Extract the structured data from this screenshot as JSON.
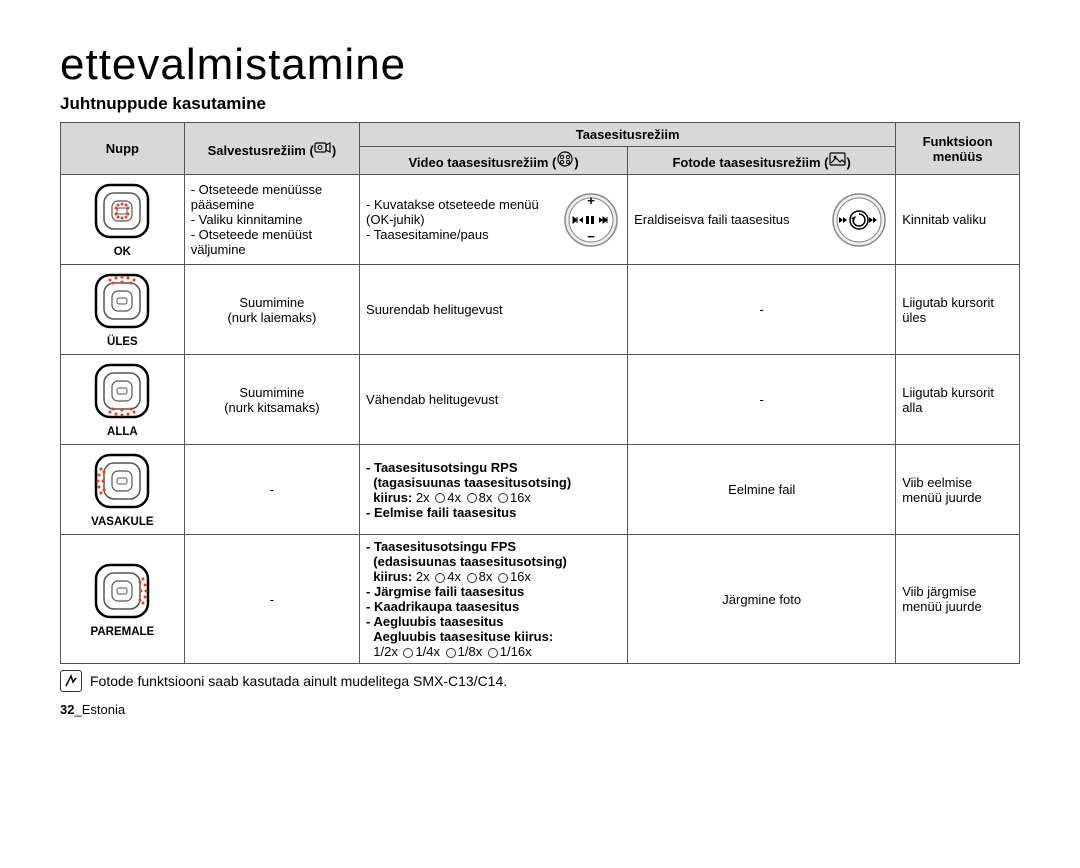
{
  "title": "ettevalmistamine",
  "subtitle": "Juhtnuppude kasutamine",
  "headers": {
    "nupp": "Nupp",
    "salvestus": "Salvestusrežiim (",
    "salvestus_suffix": ")",
    "taasesitus": "Taasesitusrežiim",
    "video": "Video taasesitusrežiim (",
    "video_suffix": ")",
    "foto": "Fotode taasesitusrežiim (",
    "foto_suffix": ")",
    "funktsioon": "Funktsioon menüüs"
  },
  "rows": [
    {
      "label": "OK",
      "salv_lines": [
        "- Otseteede menüüsse pääsemine",
        "- Valiku kinnitamine",
        "- Otseteede menüüst väljumine"
      ],
      "video_lines": [
        "- Kuvatakse otseteede menüü (OK-juhik)",
        "- Taasesitamine/paus"
      ],
      "foto_text": "Eraldiseisva faili taasesitus",
      "funk": "Kinnitab valiku"
    },
    {
      "label": "ÜLES",
      "salv_lines": [
        "Suumimine",
        "(nurk laiemaks)"
      ],
      "video_plain": "Suurendab helitugevust",
      "foto_text": "-",
      "funk": "Liigutab kursorit üles"
    },
    {
      "label": "ALLA",
      "salv_lines": [
        "Suumimine",
        "(nurk kitsamaks)"
      ],
      "video_plain": "Vähendab helitugevust",
      "foto_text": "-",
      "funk": "Liigutab kursorit alla"
    },
    {
      "label": "VASAKULE",
      "salv_plain": "-",
      "video_html": "<span class='bold'>- Taasesitusotsingu RPS<br>&nbsp;&nbsp;(tagasisuunas taasesitusotsing)<br>&nbsp;&nbsp;kiirus:</span> 2x <span class='plcircle'></span>4x <span class='plcircle'></span>8x <span class='plcircle'></span>16x<br><span class='bold'>- Eelmise faili taasesitus</span>",
      "foto_text": "Eelmine fail",
      "funk": "Viib eelmise menüü juurde"
    },
    {
      "label": "PAREMALE",
      "salv_plain": "-",
      "video_html": "<span class='bold'>- Taasesitusotsingu FPS<br>&nbsp;&nbsp;(edasisuunas taasesitusotsing)<br>&nbsp;&nbsp;kiirus:</span> 2x <span class='plcircle'></span>4x <span class='plcircle'></span>8x <span class='plcircle'></span>16x<br><span class='bold'>- Järgmise faili taasesitus<br>- Kaadrikaupa taasesitus<br>- Aegluubis taasesitus<br>&nbsp;&nbsp;Aegluubis taasesituse kiirus:</span><br>&nbsp;&nbsp;1/2x <span class='plcircle'></span>1/4x <span class='plcircle'></span>1/8x <span class='plcircle'></span>1/16x",
      "foto_text": "Järgmine foto",
      "funk": "Viib järgmise menüü juurde"
    }
  ],
  "footnote": "Fotode funktsiooni saab kasutada ainult mudelitega SMX-C13/C14.",
  "page": {
    "num": "32",
    "label": "_Estonia"
  },
  "colors": {
    "header_bg": "#d8d8d8",
    "dot": "#d42",
    "border": "#555"
  }
}
